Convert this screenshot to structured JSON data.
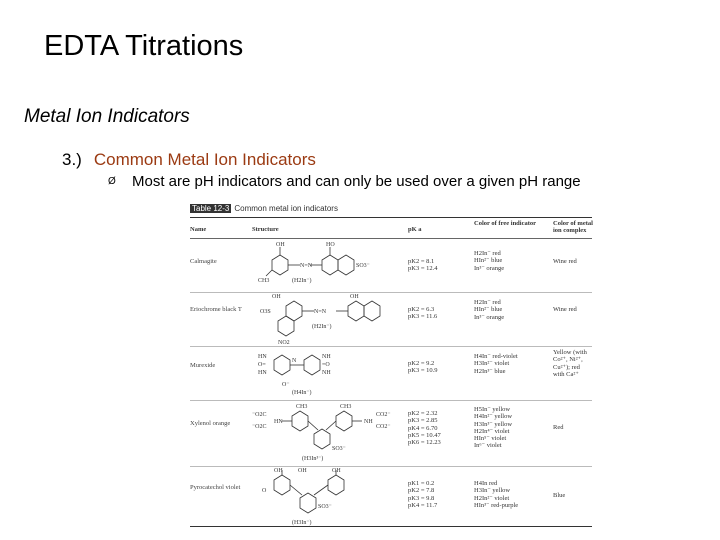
{
  "slide": {
    "title": "EDTA Titrations",
    "subtitle": "Metal Ion Indicators",
    "point_number": "3.)",
    "point_text": "Common Metal Ion Indicators",
    "bullet_glyph": "Ø",
    "bullet_text": "Most are pH indicators and can only be used over a given pH range"
  },
  "table": {
    "caption_number": "Table 12-3",
    "caption_text": "Common metal ion indicators",
    "headers": {
      "name": "Name",
      "structure": "Structure",
      "pka": "pK a",
      "free": "Color of free indicator",
      "complex": "Color of metal ion complex"
    },
    "rows": [
      {
        "name": "Calmagite",
        "pka": [
          "pK2 = 8.1",
          "pK3 = 12.4"
        ],
        "free": [
          "H2In⁻ red",
          "HIn²⁻ blue",
          "In³⁻ orange"
        ],
        "complex": [
          "Wine red"
        ]
      },
      {
        "name": "Eriochrome black T",
        "pka": [
          "pK2 = 6.3",
          "pK3 = 11.6"
        ],
        "free": [
          "H2In⁻ red",
          "HIn²⁻ blue",
          "In³⁻ orange"
        ],
        "complex": [
          "Wine red"
        ]
      },
      {
        "name": "Murexide",
        "pka": [
          "pK2 = 9.2",
          "pK3 = 10.9"
        ],
        "free": [
          "H4In⁻ red-violet",
          "H3In²⁻ violet",
          "H2In³⁻ blue"
        ],
        "complex": [
          "Yellow (with",
          "Co²⁺, Ni²⁺,",
          "Cu²⁺); red",
          "with Ca²⁺"
        ]
      },
      {
        "name": "Xylenol orange",
        "pka": [
          "pK2 = 2.32",
          "pK3 = 2.85",
          "pK4 = 6.70",
          "pK5 = 10.47",
          "pK6 = 12.23"
        ],
        "free": [
          "H5In⁻ yellow",
          "H4In²⁻ yellow",
          "H3In³⁻ yellow",
          "H2In⁴⁻ violet",
          "HIn⁵⁻ violet",
          "In⁶⁻ violet"
        ],
        "complex": [
          "Red"
        ]
      },
      {
        "name": "Pyrocatechol violet",
        "pka": [
          "pK1 = 0.2",
          "pK2 = 7.8",
          "pK3 = 9.8",
          "pK4 = 11.7"
        ],
        "free": [
          "H4In red",
          "H3In⁻ yellow",
          "H2In²⁻ violet",
          "HIn³⁻ red-purple"
        ],
        "complex": [
          "Blue"
        ]
      }
    ]
  }
}
